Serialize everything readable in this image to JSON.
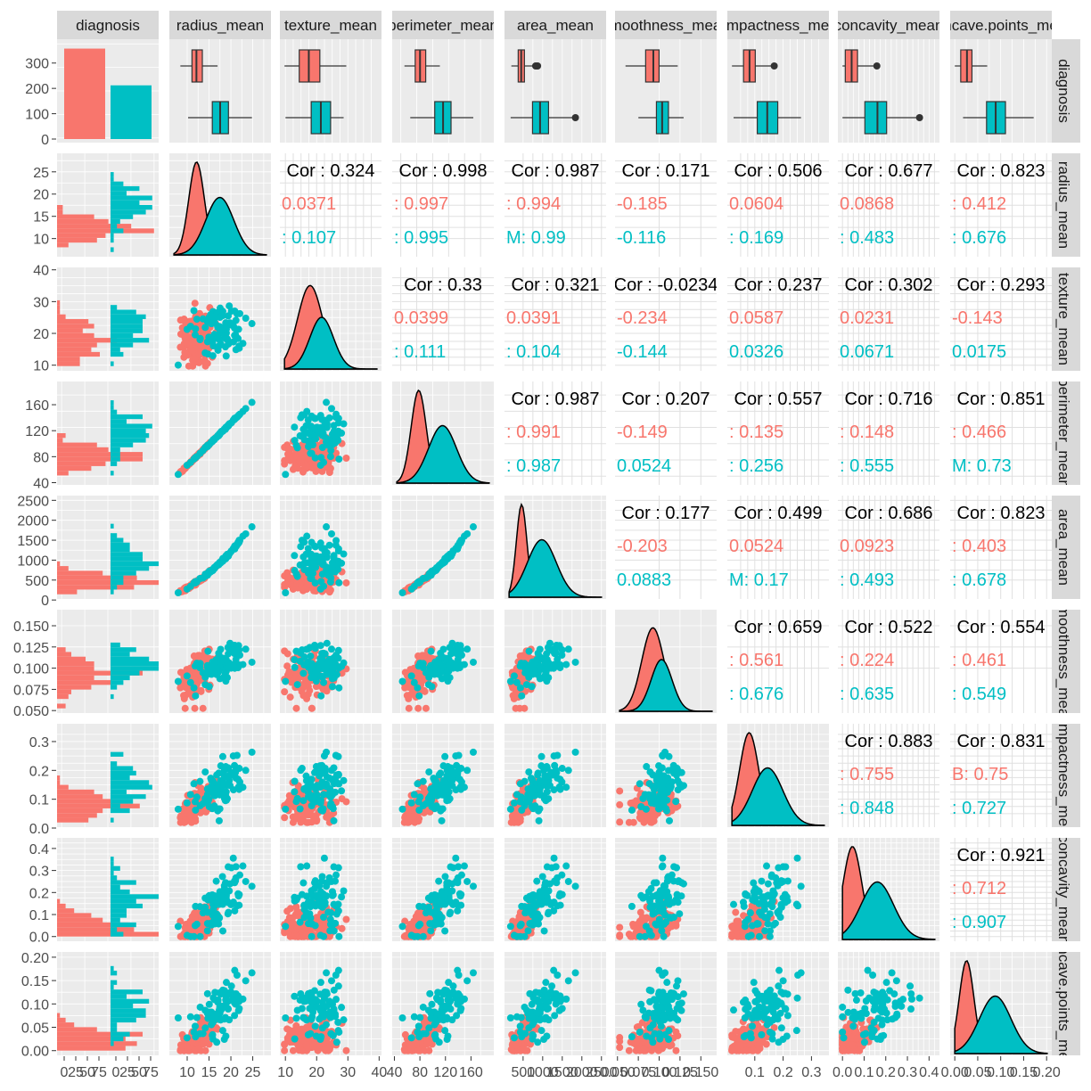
{
  "chart_data": {
    "type": "scatter",
    "subtype": "pairs-plot",
    "title": "",
    "groups": [
      "B",
      "M"
    ],
    "group_colors": {
      "B": "#F8766D",
      "M": "#00BFC4"
    },
    "variables": [
      "diagnosis",
      "radius_mean",
      "texture_mean",
      "perimeter_mean",
      "area_mean",
      "smoothness_mean",
      "compactness_mean",
      "concavity_mean",
      "concave.points_mean"
    ],
    "column_strip_labels": [
      "diagnosis",
      "radius_mean",
      "texture_mean",
      "perimeter_mean",
      "area_mean",
      "smoothness_mean",
      "compactness_mean",
      "concavity_mean",
      "concave.points_mean"
    ],
    "row_strip_labels": [
      "diagnosis",
      "radius_mean",
      "texture_mean",
      "perimeter_mean",
      "area_mean",
      "smoothness_mean",
      "compactness_mean",
      "concavity_mean",
      "concave.points_mean"
    ],
    "diagnosis_counts": {
      "B": 357,
      "M": 212
    },
    "count_ticks": [
      "0",
      "100",
      "200",
      "300"
    ],
    "bottom_ticks": [
      [
        "0",
        "25",
        "50",
        "75",
        "0",
        "25",
        "50",
        "75"
      ],
      [
        "10",
        "15",
        "20",
        "25"
      ],
      [
        "10",
        "20",
        "30",
        "40"
      ],
      [
        "40",
        "80",
        "120",
        "160"
      ],
      [
        "500",
        "1000",
        "1500",
        "2000",
        "2500"
      ],
      [
        "0.050",
        "0.075",
        "0.100",
        "0.125",
        "0.150"
      ],
      [
        "0.1",
        "0.2",
        "0.3"
      ],
      [
        "0.0",
        "0.1",
        "0.2",
        "0.3",
        "0.4"
      ],
      [
        "0.00",
        "0.05",
        "0.10",
        "0.15",
        "0.20"
      ]
    ],
    "left_ticks": [
      [
        "0",
        "100",
        "200",
        "300"
      ],
      [
        "10",
        "15",
        "20",
        "25"
      ],
      [
        "10",
        "20",
        "30",
        "40"
      ],
      [
        "40",
        "80",
        "120",
        "160"
      ],
      [
        "0",
        "500",
        "1000",
        "1500",
        "2000",
        "2500"
      ],
      [
        "0.050",
        "0.075",
        "0.100",
        "0.125",
        "0.150"
      ],
      [
        "0.0",
        "0.1",
        "0.2",
        "0.3"
      ],
      [
        "0.0",
        "0.1",
        "0.2",
        "0.3",
        "0.4"
      ],
      [
        "0.00",
        "0.05",
        "0.10",
        "0.15",
        "0.20"
      ]
    ],
    "ranges": [
      [
        0,
        1
      ],
      [
        6.98,
        28.11
      ],
      [
        9.71,
        39.28
      ],
      [
        43.79,
        188.5
      ],
      [
        143.5,
        2501
      ],
      [
        0.0526,
        0.1634
      ],
      [
        0.0194,
        0.3454
      ],
      [
        0,
        0.4268
      ],
      [
        0,
        0.2012
      ]
    ],
    "stats": {
      "B": [
        [
          0,
          0
        ],
        [
          12.15,
          1.78
        ],
        [
          17.91,
          4.0
        ],
        [
          78.08,
          11.8
        ],
        [
          462.8,
          134
        ],
        [
          0.0925,
          0.0134
        ],
        [
          0.0801,
          0.0337
        ],
        [
          0.0461,
          0.0434
        ],
        [
          0.0257,
          0.0159
        ]
      ],
      "M": [
        [
          0,
          0
        ],
        [
          17.46,
          3.2
        ],
        [
          21.6,
          3.78
        ],
        [
          115.4,
          21.9
        ],
        [
          978.4,
          368
        ],
        [
          0.1029,
          0.0126
        ],
        [
          0.1452,
          0.054
        ],
        [
          0.1608,
          0.075
        ],
        [
          0.088,
          0.0344
        ]
      ]
    },
    "correlations": [
      {
        "row": 1,
        "col": 2,
        "overall": "Cor : 0.324",
        "b": "0.0371",
        "m": ": 0.107"
      },
      {
        "row": 1,
        "col": 3,
        "overall": "Cor : 0.998",
        "b": ": 0.997",
        "m": ": 0.995"
      },
      {
        "row": 1,
        "col": 4,
        "overall": "Cor : 0.987",
        "b": ": 0.994",
        "m": "M: 0.99"
      },
      {
        "row": 1,
        "col": 5,
        "overall": "Cor : 0.171",
        "b": "-0.185",
        "m": "-0.116"
      },
      {
        "row": 1,
        "col": 6,
        "overall": "Cor : 0.506",
        "b": "0.0604",
        "m": ": 0.169"
      },
      {
        "row": 1,
        "col": 7,
        "overall": "Cor : 0.677",
        "b": "0.0868",
        "m": ": 0.483"
      },
      {
        "row": 1,
        "col": 8,
        "overall": "Cor : 0.823",
        "b": ": 0.412",
        "m": ": 0.676"
      },
      {
        "row": 2,
        "col": 3,
        "overall": "Cor : 0.33",
        "b": "0.0399",
        "m": ": 0.111"
      },
      {
        "row": 2,
        "col": 4,
        "overall": "Cor : 0.321",
        "b": "0.0391",
        "m": ": 0.104"
      },
      {
        "row": 2,
        "col": 5,
        "overall": "Cor : -0.0234",
        "b": "-0.234",
        "m": "-0.144"
      },
      {
        "row": 2,
        "col": 6,
        "overall": "Cor : 0.237",
        "b": "0.0587",
        "m": "0.0326"
      },
      {
        "row": 2,
        "col": 7,
        "overall": "Cor : 0.302",
        "b": "0.0231",
        "m": "0.0671"
      },
      {
        "row": 2,
        "col": 8,
        "overall": "Cor : 0.293",
        "b": "-0.143",
        "m": "0.0175"
      },
      {
        "row": 3,
        "col": 4,
        "overall": "Cor : 0.987",
        "b": ": 0.991",
        "m": ": 0.987"
      },
      {
        "row": 3,
        "col": 5,
        "overall": "Cor : 0.207",
        "b": "-0.149",
        "m": "0.0524"
      },
      {
        "row": 3,
        "col": 6,
        "overall": "Cor : 0.557",
        "b": ": 0.135",
        "m": ": 0.256"
      },
      {
        "row": 3,
        "col": 7,
        "overall": "Cor : 0.716",
        "b": ": 0.148",
        "m": ": 0.555"
      },
      {
        "row": 3,
        "col": 8,
        "overall": "Cor : 0.851",
        "b": ": 0.466",
        "m": "M: 0.73"
      },
      {
        "row": 4,
        "col": 5,
        "overall": "Cor : 0.177",
        "b": "-0.203",
        "m": "0.0883"
      },
      {
        "row": 4,
        "col": 6,
        "overall": "Cor : 0.499",
        "b": "0.0524",
        "m": "M: 0.17"
      },
      {
        "row": 4,
        "col": 7,
        "overall": "Cor : 0.686",
        "b": "0.0923",
        "m": ": 0.493"
      },
      {
        "row": 4,
        "col": 8,
        "overall": "Cor : 0.823",
        "b": ": 0.403",
        "m": ": 0.678"
      },
      {
        "row": 5,
        "col": 6,
        "overall": "Cor : 0.659",
        "b": ": 0.561",
        "m": ": 0.676"
      },
      {
        "row": 5,
        "col": 7,
        "overall": "Cor : 0.522",
        "b": ": 0.224",
        "m": ": 0.635"
      },
      {
        "row": 5,
        "col": 8,
        "overall": "Cor : 0.554",
        "b": ": 0.461",
        "m": ": 0.549"
      },
      {
        "row": 6,
        "col": 7,
        "overall": "Cor : 0.883",
        "b": ": 0.755",
        "m": ": 0.848"
      },
      {
        "row": 6,
        "col": 8,
        "overall": "Cor : 0.831",
        "b": "B: 0.75",
        "m": ": 0.727"
      },
      {
        "row": 7,
        "col": 8,
        "overall": "Cor : 0.921",
        "b": ": 0.712",
        "m": ": 0.907"
      }
    ]
  }
}
